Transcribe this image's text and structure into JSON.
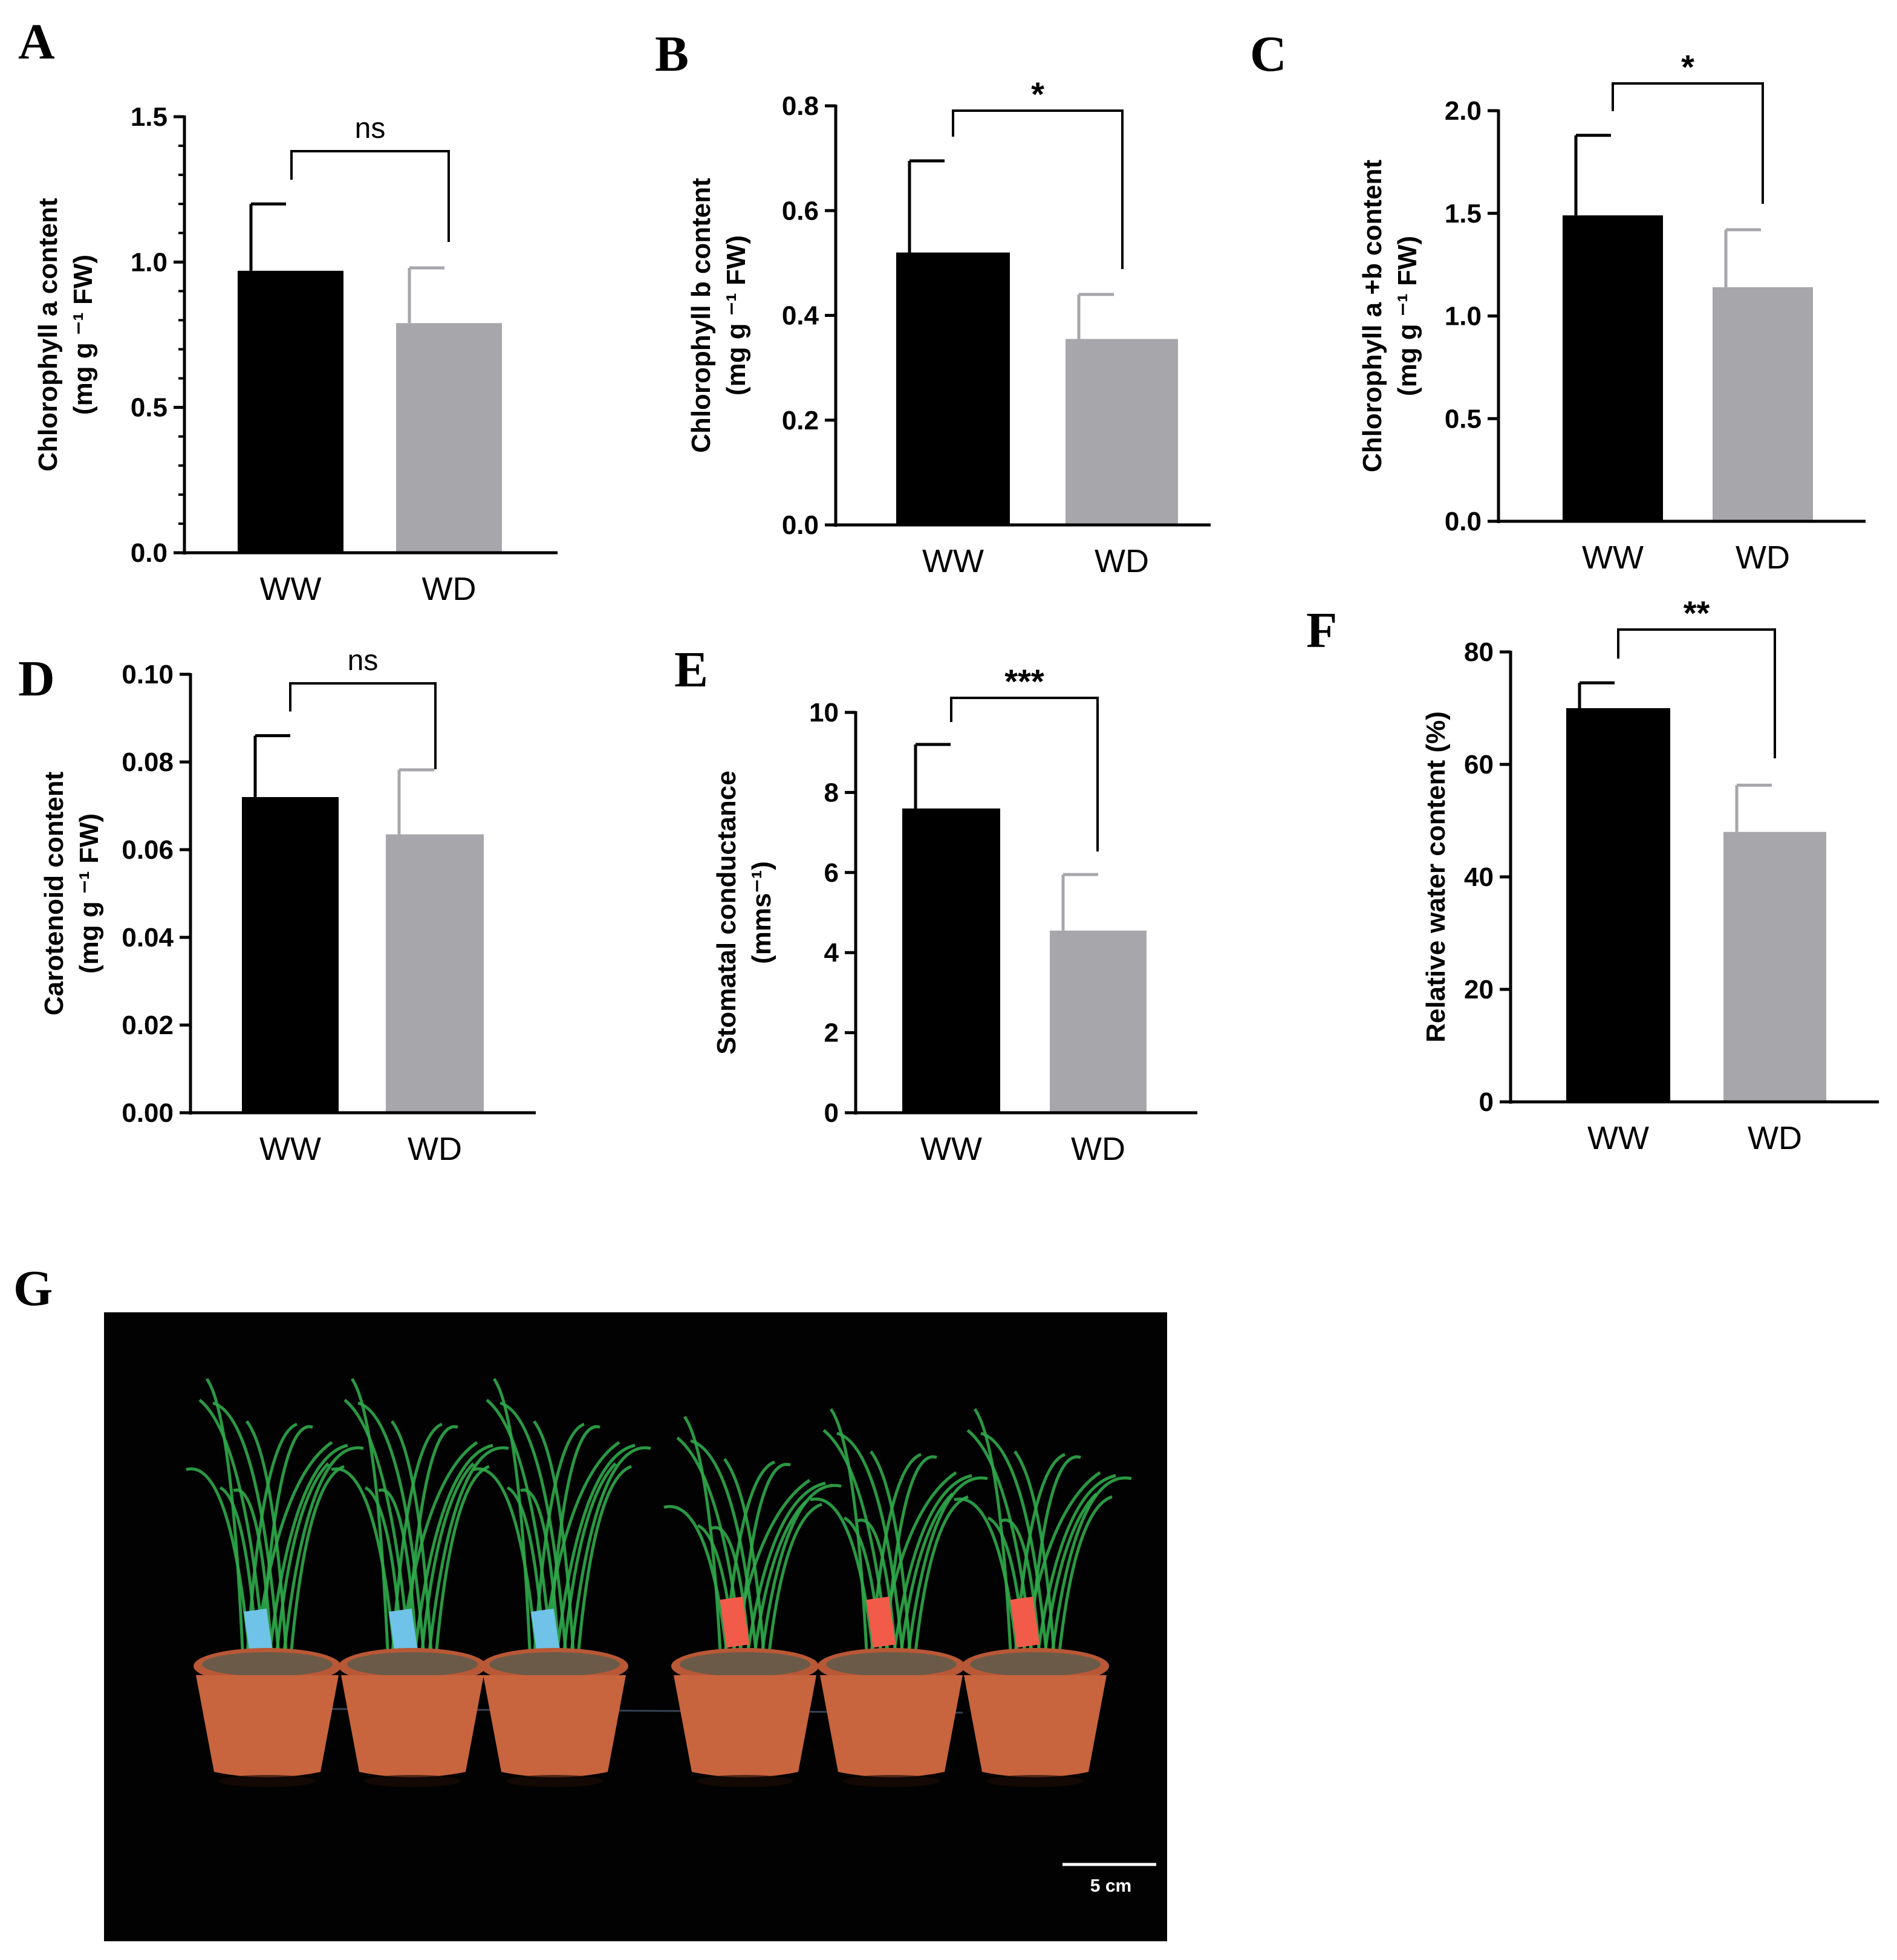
{
  "panel_letters": [
    "A",
    "B",
    "C",
    "D",
    "E",
    "F",
    "G"
  ],
  "colors": {
    "WW": "#000000",
    "WD": "#a7a6ab",
    "photo_background": "#020202",
    "pot": "#c8643e",
    "leaf": "#2fa84a"
  },
  "chart_data": [
    {
      "panel": "A",
      "type": "bar",
      "categories": [
        "WW",
        "WD"
      ],
      "values": [
        0.97,
        0.79
      ],
      "errors": [
        0.23,
        0.19
      ],
      "ylabel_lines": [
        "Chlorophyll a content",
        "(mg g ⁻¹ FW)"
      ],
      "ylim": [
        0,
        1.5
      ],
      "yticks": [
        "0.0",
        "0.5",
        "1.0",
        "1.5"
      ],
      "minor_ticks": true,
      "significance": "ns",
      "grid": false
    },
    {
      "panel": "B",
      "type": "bar",
      "categories": [
        "WW",
        "WD"
      ],
      "values": [
        0.52,
        0.355
      ],
      "errors": [
        0.175,
        0.085
      ],
      "ylabel_lines": [
        "Chlorophyll b content",
        "(mg g ⁻¹ FW)"
      ],
      "ylim": [
        0,
        0.8
      ],
      "yticks": [
        "0.0",
        "0.2",
        "0.4",
        "0.6",
        "0.8"
      ],
      "minor_ticks": false,
      "significance": "*",
      "grid": false
    },
    {
      "panel": "C",
      "type": "bar",
      "categories": [
        "WW",
        "WD"
      ],
      "values": [
        1.49,
        1.14
      ],
      "errors": [
        0.39,
        0.28
      ],
      "ylabel_lines": [
        "Chlorophyll a +b content",
        "(mg g ⁻¹ FW)"
      ],
      "ylim": [
        0,
        2.0
      ],
      "yticks": [
        "0.0",
        "0.5",
        "1.0",
        "1.5",
        "2.0"
      ],
      "minor_ticks": false,
      "significance": "*",
      "grid": false
    },
    {
      "panel": "D",
      "type": "bar",
      "categories": [
        "WW",
        "WD"
      ],
      "values": [
        0.072,
        0.0635
      ],
      "errors": [
        0.014,
        0.0147
      ],
      "ylabel_lines": [
        "Carotenoid content",
        "(mg g ⁻¹ FW)"
      ],
      "ylim": [
        0,
        0.1
      ],
      "yticks": [
        "0.00",
        "0.02",
        "0.04",
        "0.06",
        "0.08",
        "0.10"
      ],
      "minor_ticks": false,
      "significance": "ns",
      "grid": false
    },
    {
      "panel": "E",
      "type": "bar",
      "categories": [
        "WW",
        "WD"
      ],
      "values": [
        7.6,
        4.55
      ],
      "errors": [
        1.6,
        1.4
      ],
      "ylabel_lines": [
        "Stomatal conductance",
        "(mms⁻¹)"
      ],
      "ylim": [
        0,
        10
      ],
      "yticks": [
        "0",
        "2",
        "4",
        "6",
        "8",
        "10"
      ],
      "minor_ticks": false,
      "significance": "***",
      "grid": false
    },
    {
      "panel": "F",
      "type": "bar",
      "categories": [
        "WW",
        "WD"
      ],
      "values": [
        70,
        48
      ],
      "errors": [
        4.5,
        8.3
      ],
      "ylabel_lines": [
        "Relative water content  (%)"
      ],
      "ylim": [
        0,
        80
      ],
      "yticks": [
        "0",
        "20",
        "40",
        "60",
        "80"
      ],
      "minor_ticks": false,
      "significance": "**",
      "grid": false
    }
  ],
  "photo": {
    "panel": "G",
    "scale_bar_label": "5 cm",
    "pot_count": 6,
    "tag_colors": [
      "#6fc3e8",
      "#6fc3e8",
      "#6fc3e8",
      "#f25a4a",
      "#f25a4a",
      "#f25a4a"
    ]
  }
}
